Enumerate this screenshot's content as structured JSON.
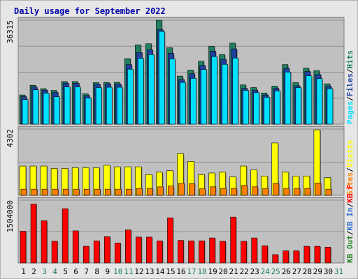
{
  "colors": {
    "background": "#ffffff",
    "frame_bg": "#e6e6e6",
    "plot_bg": "#c0c0c0",
    "title": "#0000aa",
    "pages": "#00e0ff",
    "files": "#2040a0",
    "hits": "#208060",
    "visits": "#ffff00",
    "sites": "#ff8000",
    "kb_f": "#ff0000",
    "kb_in": "#3070d0",
    "kb_out": "#208020",
    "weekend": "#208060",
    "weekday": "#000000"
  },
  "chart_data": {
    "type": "bar",
    "title": "Daily usage for September 2022",
    "categories": [
      "1",
      "2",
      "3",
      "4",
      "5",
      "6",
      "7",
      "8",
      "9",
      "10",
      "11",
      "12",
      "13",
      "14",
      "15",
      "16",
      "17",
      "18",
      "19",
      "20",
      "21",
      "22",
      "23",
      "24",
      "25",
      "26",
      "27",
      "28",
      "29",
      "30",
      "31"
    ],
    "weekend_days": [
      "3",
      "4",
      "10",
      "11",
      "17",
      "18",
      "24",
      "25",
      "31"
    ],
    "panels": [
      {
        "name": "hits-files-pages",
        "y_max_label": "36315",
        "ylim": [
          0,
          36315
        ],
        "legend": [
          {
            "text": "Hits",
            "color": "#208060"
          },
          {
            "text": "/",
            "color": "#000000"
          },
          {
            "text": "Files",
            "color": "#2040a0"
          },
          {
            "text": "/",
            "color": "#000000"
          },
          {
            "text": "Pages",
            "color": "#00e0ff"
          }
        ],
        "series": [
          {
            "name": "Hits",
            "values": [
              10200,
              13600,
              12400,
              11800,
              14900,
              14900,
              10600,
              14500,
              14600,
              14600,
              22900,
              27700,
              28100,
              36300,
              26700,
              16800,
              18900,
              22000,
              27200,
              24300,
              28300,
              13700,
              12800,
              10900,
              13300,
              20800,
              14500,
              19600,
              18700,
              14100,
              0
            ]
          },
          {
            "name": "Files",
            "values": [
              9600,
              13000,
              11900,
              11100,
              14300,
              14300,
              10000,
              14000,
              14100,
              14000,
              20800,
              25000,
              26000,
              33000,
              24800,
              15600,
              17600,
              20500,
              25500,
              22600,
              26300,
              12500,
              11900,
              10200,
              12500,
              19500,
              13400,
              18400,
              17300,
              13200,
              0
            ]
          },
          {
            "name": "Pages",
            "values": [
              8600,
              12000,
              10800,
              9600,
              13000,
              13000,
              9100,
              12800,
              12900,
              12900,
              19200,
              23000,
              24300,
              32400,
              22800,
              14600,
              16000,
              19100,
              23600,
              20900,
              23100,
              11800,
              11000,
              9400,
              11600,
              18200,
              12800,
              16900,
              15900,
              12400,
              0
            ]
          }
        ]
      },
      {
        "name": "visits-sites",
        "y_max_label": "4302",
        "ylim": [
          0,
          4302
        ],
        "legend": [
          {
            "text": "Visits",
            "color": "#ffff00"
          },
          {
            "text": "/",
            "color": "#000000"
          },
          {
            "text": "Sites",
            "color": "#ff8000"
          }
        ],
        "series": [
          {
            "name": "Visits",
            "values": [
              1900,
              1900,
              1900,
              1750,
              1750,
              1800,
              1800,
              1800,
              1950,
              1850,
              1850,
              1850,
              1350,
              1500,
              1600,
              2700,
              2200,
              1350,
              1450,
              1500,
              1200,
              1900,
              1650,
              1250,
              3400,
              1500,
              1250,
              1250,
              4250,
              1150,
              0
            ]
          },
          {
            "name": "Sites",
            "values": [
              400,
              400,
              400,
              400,
              400,
              400,
              400,
              400,
              400,
              400,
              400,
              450,
              450,
              550,
              600,
              780,
              760,
              420,
              550,
              450,
              450,
              650,
              550,
              450,
              780,
              450,
              450,
              450,
              800,
              400,
              0
            ]
          }
        ]
      },
      {
        "name": "kbf-kbin-kbout",
        "y_max_label": "1504000",
        "ylim": [
          0,
          1504000
        ],
        "legend": [
          {
            "text": "KB F",
            "color": "#ff0000"
          },
          {
            "text": "/",
            "color": "#000000"
          },
          {
            "text": "KB In",
            "color": "#3070d0"
          },
          {
            "text": "/",
            "color": "#000000"
          },
          {
            "text": "KB Out",
            "color": "#208020"
          }
        ],
        "series": [
          {
            "name": "KB F",
            "values": [
              760000,
              1410000,
              1010000,
              520000,
              1300000,
              770000,
              400000,
              530000,
              630000,
              480000,
              790000,
              620000,
              620000,
              530000,
              1080000,
              540000,
              530000,
              530000,
              600000,
              520000,
              1100000,
              520000,
              600000,
              410000,
              200000,
              290000,
              290000,
              400000,
              400000,
              380000,
              0
            ]
          }
        ]
      }
    ]
  }
}
